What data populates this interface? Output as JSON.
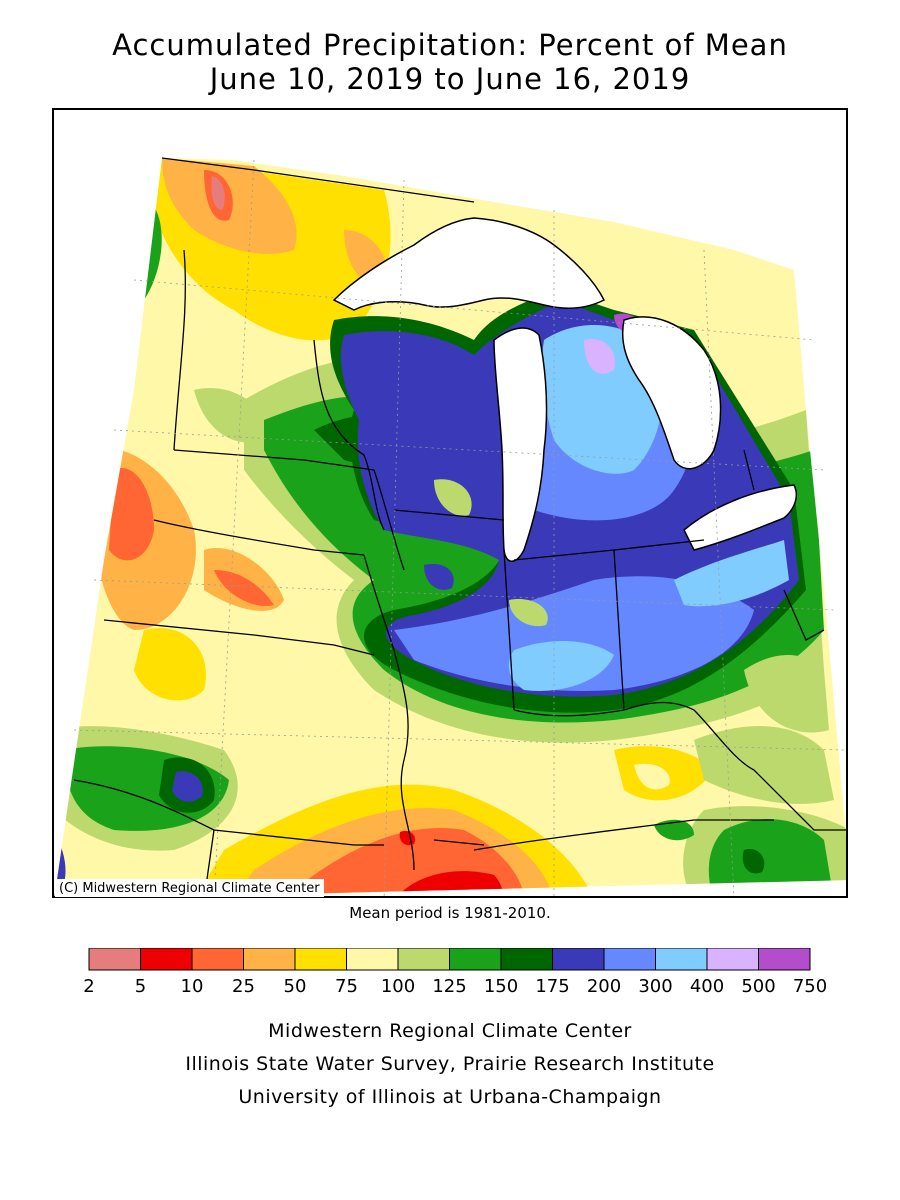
{
  "title": {
    "line1": "Accumulated Precipitation: Percent of Mean",
    "line2": "June 10, 2019 to June 16, 2019"
  },
  "map": {
    "copyright": "(C) Midwestern Regional Climate Center",
    "mean_note": "Mean period is 1981-2010."
  },
  "legend": {
    "breaks": [
      "2",
      "5",
      "10",
      "25",
      "50",
      "75",
      "100",
      "125",
      "150",
      "175",
      "200",
      "300",
      "400",
      "500",
      "750"
    ],
    "colors": [
      "#e67d7d",
      "#ee0000",
      "#ff6633",
      "#ffb347",
      "#ffe000",
      "#fff8a8",
      "#bcd96e",
      "#1aa31a",
      "#006600",
      "#3a3ab8",
      "#6688ff",
      "#80ccff",
      "#d9b3ff",
      "#b34dcc"
    ]
  },
  "footer": {
    "line1": "Midwestern Regional Climate Center",
    "line2": "Illinois State Water Survey, Prairie Research Institute",
    "line3": "University of Illinois at Urbana-Champaign"
  }
}
